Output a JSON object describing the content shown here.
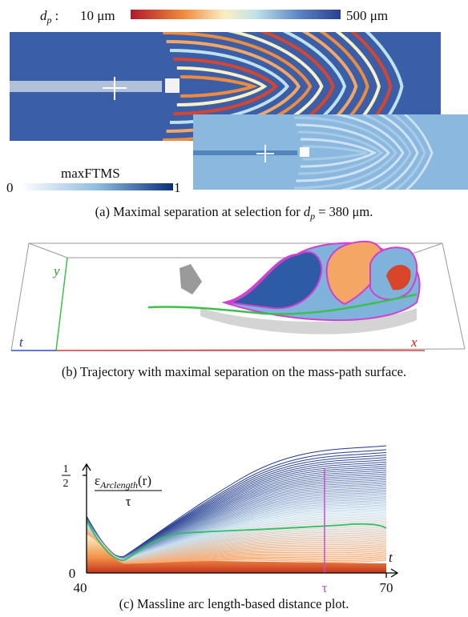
{
  "panel_a": {
    "colorbar_label": {
      "symbol": "d",
      "subscript": "p",
      "separator": ":"
    },
    "colorbar_min": "10 μm",
    "colorbar_max": "500 μm",
    "inset_colorbar_label": "maxFTMS",
    "inset_colorbar_min": "0",
    "inset_colorbar_max": "1",
    "caption": {
      "prefix": "(a) Maximal separation at selection for ",
      "symbol": "d",
      "subscript": "p",
      "suffix": " = 380 μm."
    }
  },
  "panel_b": {
    "axis_y": "y",
    "axis_t": "t",
    "axis_x": "x",
    "caption": "(b) Trajectory with maximal separation on the mass-path surface."
  },
  "panel_c": {
    "y_label": {
      "symbol": "ε",
      "subscript": "Arclength",
      "argument": "(r)",
      "denominator": "τ"
    },
    "y_tick_top": {
      "numerator": "1",
      "denominator": "2"
    },
    "y_tick_bottom": "0",
    "x_tick_left": "40",
    "x_tick_right": "70",
    "x_axis_label": "t",
    "marker_label": "τ",
    "caption": "(c) Massline arc length-based distance plot."
  }
}
